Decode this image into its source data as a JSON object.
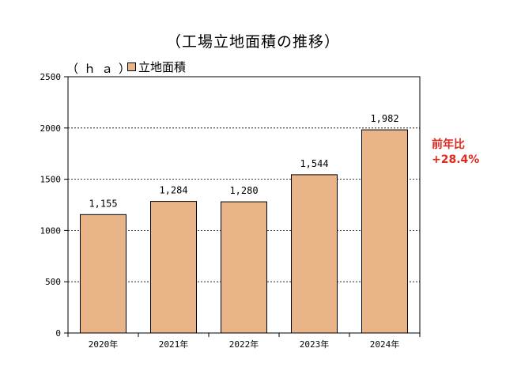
{
  "chart_data": {
    "type": "bar",
    "title": "（工場立地面積の推移）",
    "unit_label": "（ｈａ）",
    "legend_label": "立地面積",
    "categories": [
      "2020年",
      "2021年",
      "2022年",
      "2023年",
      "2024年"
    ],
    "values": [
      1155,
      1284,
      1280,
      1544,
      1982
    ],
    "value_labels": [
      "1,155",
      "1,284",
      "1,280",
      "1,544",
      "1,982"
    ],
    "ylim": [
      0,
      2500
    ],
    "yticks": [
      "0",
      "500",
      "1000",
      "1500",
      "2000",
      "2500"
    ],
    "grid": true,
    "bar_color": "#eab489",
    "annotation": {
      "line1": "前年比",
      "line2": "+28.4%",
      "color": "#e0281e"
    }
  }
}
